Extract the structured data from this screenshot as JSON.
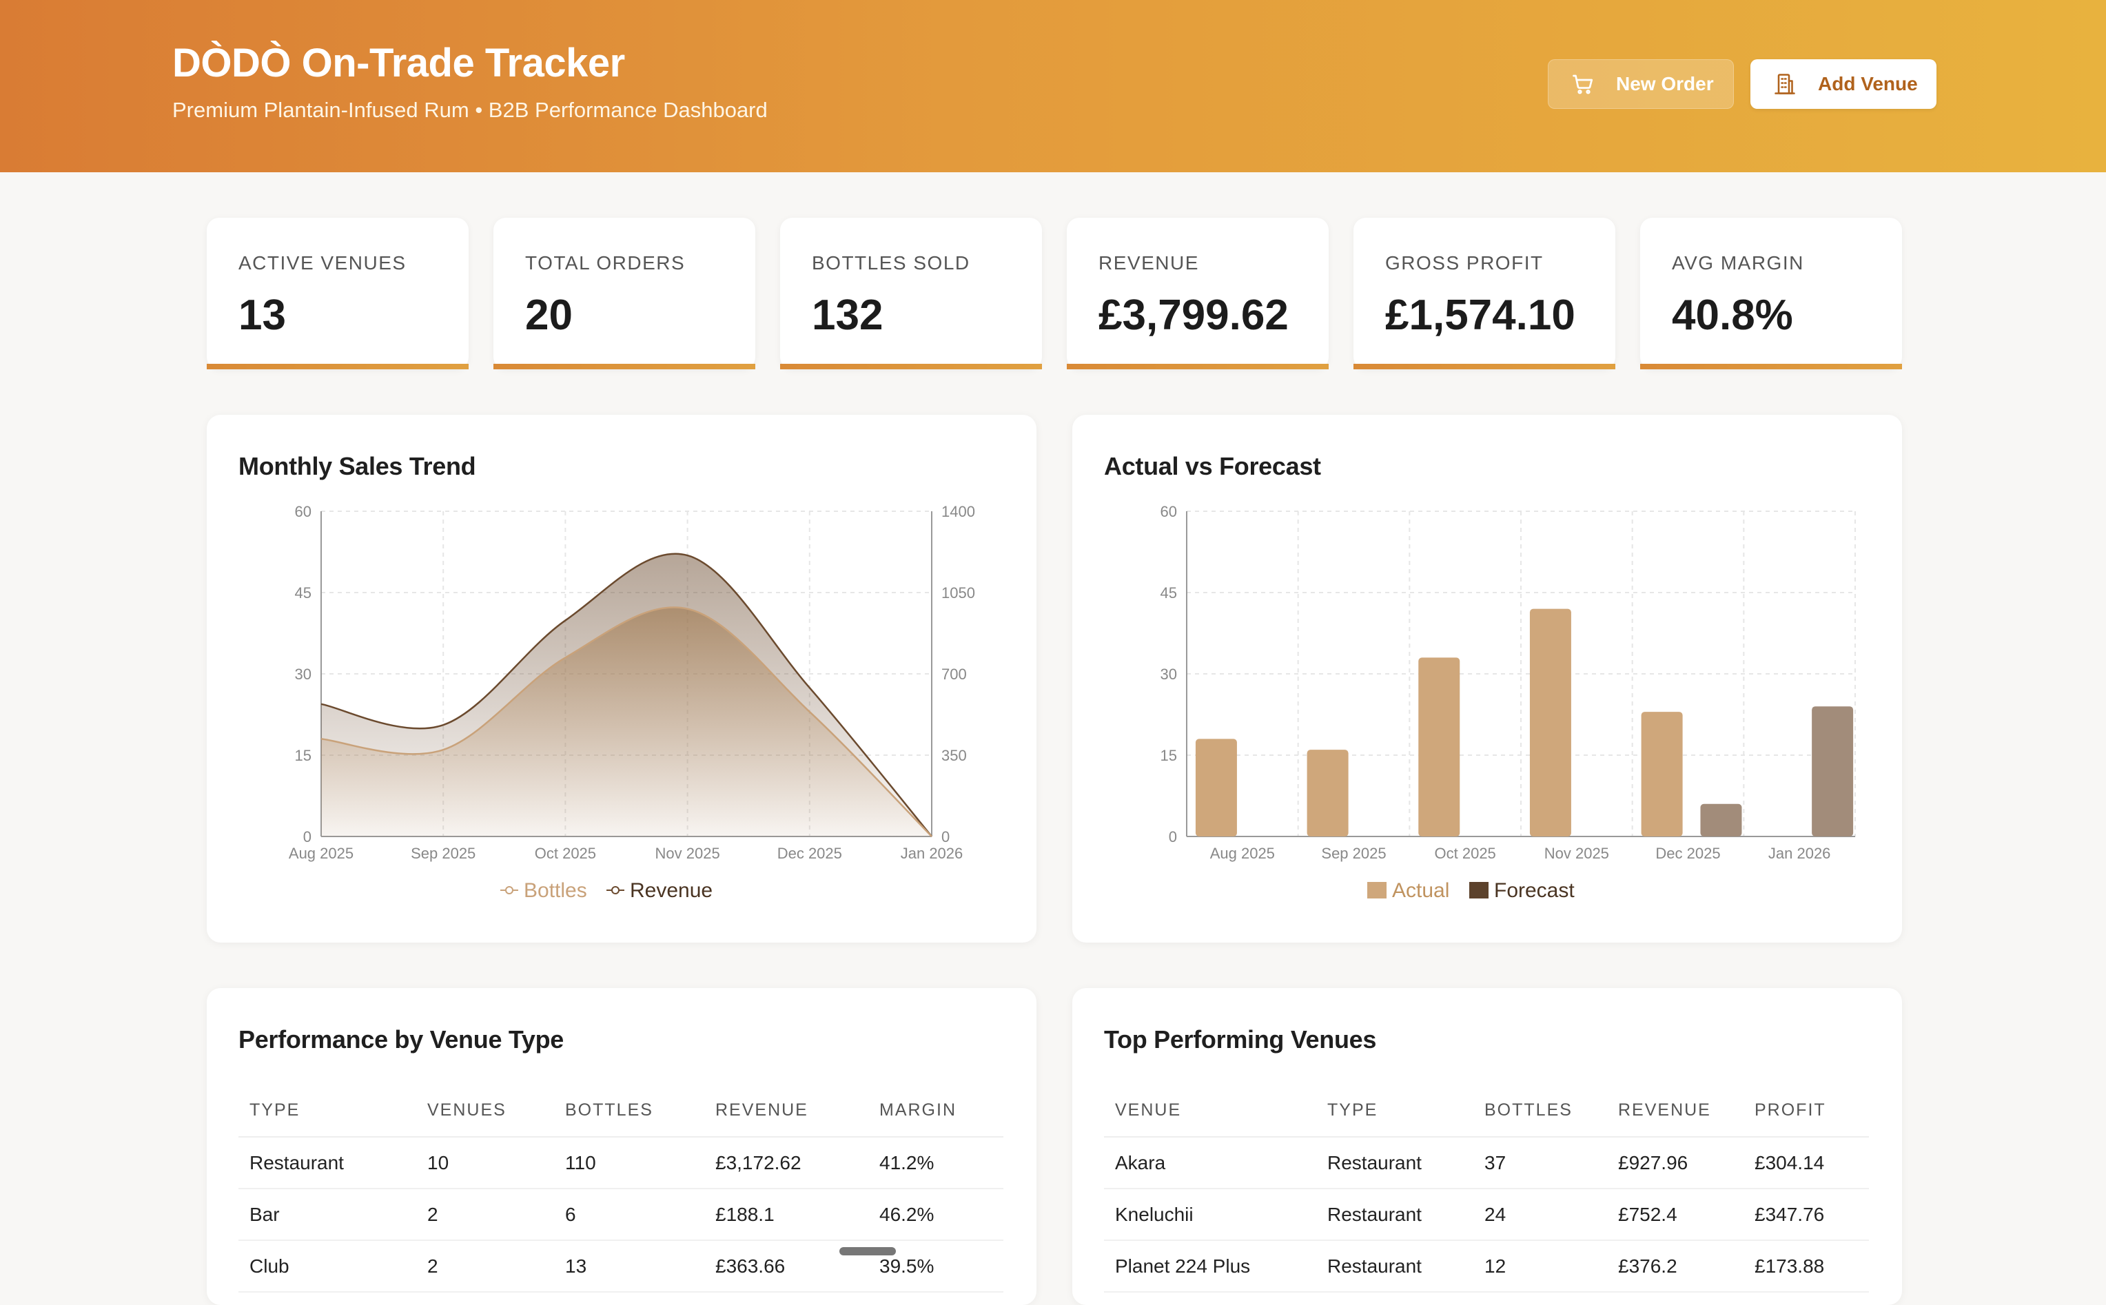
{
  "header": {
    "title": "DÒDÒ On-Trade Tracker",
    "subtitle": "Premium Plantain-Infused Rum • B2B Performance Dashboard",
    "new_order_label": "New Order",
    "add_venue_label": "Add Venue",
    "new_order_icon": "cart-icon",
    "add_venue_icon": "building-icon"
  },
  "kpis": [
    {
      "label": "ACTIVE VENUES",
      "value": "13"
    },
    {
      "label": "TOTAL ORDERS",
      "value": "20"
    },
    {
      "label": "BOTTLES SOLD",
      "value": "132"
    },
    {
      "label": "REVENUE",
      "value": "£3,799.62"
    },
    {
      "label": "GROSS PROFIT",
      "value": "£1,574.10"
    },
    {
      "label": "AVG MARGIN",
      "value": "40.8%"
    }
  ],
  "monthly_chart": {
    "title": "Monthly Sales Trend",
    "legend": [
      "Bottles",
      "Revenue"
    ]
  },
  "forecast_chart": {
    "title": "Actual vs Forecast",
    "legend": [
      "Actual",
      "Forecast"
    ]
  },
  "chart_data": [
    {
      "type": "area",
      "title": "Monthly Sales Trend",
      "categories": [
        "Aug 2025",
        "Sep 2025",
        "Oct 2025",
        "Nov 2025",
        "Dec 2025",
        "Jan 2026"
      ],
      "series": [
        {
          "name": "Bottles",
          "axis": "left",
          "values": [
            18,
            16,
            33,
            42,
            23,
            0
          ],
          "color": "#c9a27a"
        },
        {
          "name": "Revenue",
          "axis": "right",
          "values": [
            570,
            480,
            930,
            1210,
            640,
            0
          ],
          "color": "#6b4a2e"
        }
      ],
      "ylim_left": [
        0,
        60
      ],
      "yticks_left": [
        0,
        15,
        30,
        45,
        60
      ],
      "ylim_right": [
        0,
        1400
      ],
      "yticks_right": [
        0,
        350,
        700,
        1050,
        1400
      ],
      "grid": true,
      "legend": "bottom"
    },
    {
      "type": "bar",
      "title": "Actual vs Forecast",
      "categories": [
        "Aug 2025",
        "Sep 2025",
        "Oct 2025",
        "Nov 2025",
        "Dec 2025",
        "Jan 2026"
      ],
      "series": [
        {
          "name": "Actual",
          "values": [
            18,
            16,
            33,
            42,
            23,
            0
          ],
          "color": "#cfa77b"
        },
        {
          "name": "Forecast",
          "values": [
            0,
            0,
            0,
            0,
            6,
            24
          ],
          "color": "#a28c7a"
        }
      ],
      "ylim": [
        0,
        60
      ],
      "yticks": [
        0,
        15,
        30,
        45,
        60
      ],
      "grid": true,
      "legend": "bottom"
    }
  ],
  "venue_type_table": {
    "title": "Performance by Venue Type",
    "columns": [
      "TYPE",
      "VENUES",
      "BOTTLES",
      "REVENUE",
      "MARGIN"
    ],
    "rows": [
      [
        "Restaurant",
        "10",
        "110",
        "£3,172.62",
        "41.2%"
      ],
      [
        "Bar",
        "2",
        "6",
        "£188.1",
        "46.2%"
      ],
      [
        "Club",
        "2",
        "13",
        "£363.66",
        "39.5%"
      ]
    ]
  },
  "top_venues_table": {
    "title": "Top Performing Venues",
    "columns": [
      "VENUE",
      "TYPE",
      "BOTTLES",
      "REVENUE",
      "PROFIT"
    ],
    "rows": [
      [
        "Akara",
        "Restaurant",
        "37",
        "£927.96",
        "£304.14"
      ],
      [
        "Kneluchii",
        "Restaurant",
        "24",
        "£752.4",
        "£347.76"
      ],
      [
        "Planet 224 Plus",
        "Restaurant",
        "12",
        "£376.2",
        "£173.88"
      ]
    ]
  },
  "colors": {
    "header_start": "#d97c34",
    "header_end": "#e8b23e",
    "accent": "#b0621c"
  }
}
